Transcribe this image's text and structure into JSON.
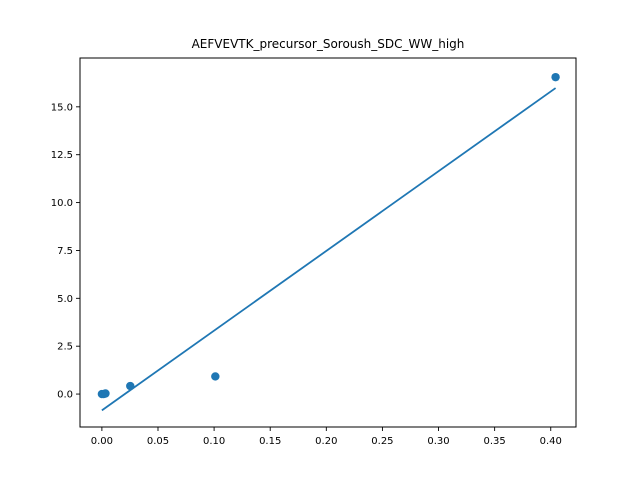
{
  "chart_data": {
    "type": "scatter",
    "title": "AEFVEVTK_precursor_Soroush_SDC_WW_high",
    "xlabel": "",
    "ylabel": "",
    "xlim": [
      -0.0195,
      0.4225
    ],
    "ylim": [
      -1.72,
      17.55
    ],
    "x_ticks": [
      0.0,
      0.05,
      0.1,
      0.15,
      0.2,
      0.25,
      0.3,
      0.35,
      0.4
    ],
    "x_tick_labels": [
      "0.00",
      "0.05",
      "0.10",
      "0.15",
      "0.20",
      "0.25",
      "0.30",
      "0.35",
      "0.40"
    ],
    "y_ticks": [
      0.0,
      2.5,
      5.0,
      7.5,
      10.0,
      12.5,
      15.0
    ],
    "y_tick_labels": [
      "0.0",
      "2.5",
      "5.0",
      "7.5",
      "10.0",
      "12.5",
      "15.0"
    ],
    "grid": false,
    "series": [
      {
        "kind": "scatter",
        "color": "#1f77b4",
        "points": [
          {
            "x": 0.0,
            "y": 0.0
          },
          {
            "x": 0.0016,
            "y": 0.0
          },
          {
            "x": 0.0032,
            "y": 0.03
          },
          {
            "x": 0.0253,
            "y": 0.42
          },
          {
            "x": 0.1011,
            "y": 0.92
          },
          {
            "x": 0.4043,
            "y": 16.55
          }
        ]
      },
      {
        "kind": "line",
        "color": "#1f77b4",
        "points": [
          {
            "x": 0.0,
            "y": -0.85
          },
          {
            "x": 0.4043,
            "y": 15.98
          }
        ]
      }
    ]
  }
}
